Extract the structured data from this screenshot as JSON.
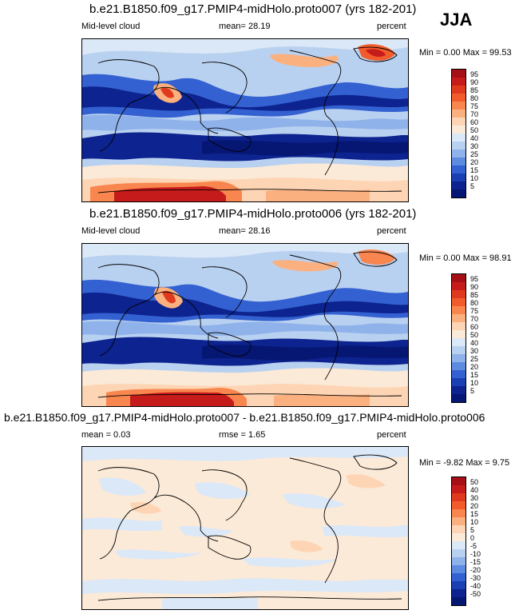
{
  "season": "JJA",
  "panels": [
    {
      "title": "b.e21.B1850.f09_g17.PMIP4-midHolo.proto007 (yrs 182-201)",
      "left_label": "Mid-level cloud",
      "center_label": "mean=  28.19",
      "units": "percent",
      "stats": "Min =   0.00 Max =  99.53",
      "colorbar_ticks": [
        "95",
        "90",
        "85",
        "80",
        "75",
        "70",
        "60",
        "50",
        "40",
        "30",
        "25",
        "20",
        "15",
        "10",
        "5"
      ],
      "colorbar_colors": [
        "#a50f15",
        "#c61b1b",
        "#e03a1e",
        "#f25c2c",
        "#f8864e",
        "#fbb07f",
        "#fdd5b4",
        "#fcead8",
        "#dbe8f7",
        "#b9d1f0",
        "#8fb2ea",
        "#5d8be0",
        "#3461d1",
        "#1a3fb3",
        "#0d238f",
        "#061673"
      ]
    },
    {
      "title": "b.e21.B1850.f09_g17.PMIP4-midHolo.proto006 (yrs 182-201)",
      "left_label": "Mid-level cloud",
      "center_label": "mean=  28.16",
      "units": "percent",
      "stats": "Min =   0.00 Max =  98.91",
      "colorbar_ticks": [
        "95",
        "90",
        "85",
        "80",
        "75",
        "70",
        "60",
        "50",
        "40",
        "30",
        "25",
        "20",
        "15",
        "10",
        "5"
      ],
      "colorbar_colors": [
        "#a50f15",
        "#c61b1b",
        "#e03a1e",
        "#f25c2c",
        "#f8864e",
        "#fbb07f",
        "#fdd5b4",
        "#fcead8",
        "#dbe8f7",
        "#b9d1f0",
        "#8fb2ea",
        "#5d8be0",
        "#3461d1",
        "#1a3fb3",
        "#0d238f",
        "#061673"
      ]
    },
    {
      "title": "b.e21.B1850.f09_g17.PMIP4-midHolo.proto007 - b.e21.B1850.f09_g17.PMIP4-midHolo.proto006",
      "left_label": "mean =   0.03",
      "center_label": "rmse =   1.65",
      "units": "percent",
      "stats": "Min =  -9.82 Max =   9.75",
      "colorbar_ticks": [
        "50",
        "40",
        "30",
        "20",
        "15",
        "10",
        "5",
        "0",
        "-5",
        "-10",
        "-15",
        "-20",
        "-30",
        "-40",
        "-50"
      ],
      "colorbar_colors": [
        "#a50f15",
        "#c61b1b",
        "#e03a1e",
        "#f25c2c",
        "#f8864e",
        "#fbb07f",
        "#fdd5b4",
        "#fcead8",
        "#dbe8f7",
        "#b9d1f0",
        "#8fb2ea",
        "#5d8be0",
        "#3461d1",
        "#1a3fb3",
        "#0d238f",
        "#061673"
      ]
    }
  ]
}
